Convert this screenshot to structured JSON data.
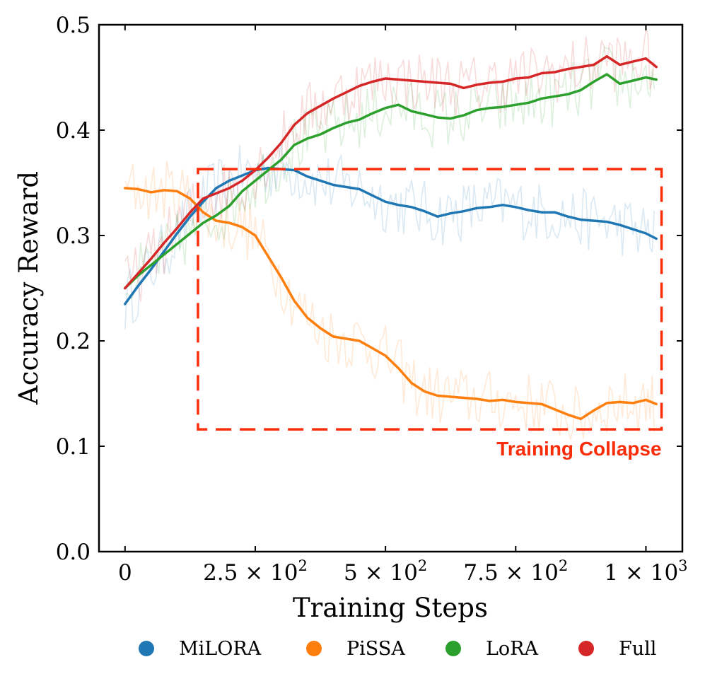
{
  "chart_data": {
    "type": "line",
    "title": "",
    "xlabel": "Training Steps",
    "ylabel": "Accuracy Reward",
    "xlim": [
      -50,
      1070
    ],
    "ylim": [
      0.0,
      0.5
    ],
    "y_ticks": [
      0.0,
      0.1,
      0.2,
      0.3,
      0.4,
      0.5
    ],
    "y_tick_labels": [
      "0.0",
      "0.1",
      "0.2",
      "0.3",
      "0.4",
      "0.5"
    ],
    "x_ticks": [
      {
        "value": 0,
        "label": "0",
        "exp": ""
      },
      {
        "value": 250,
        "label": "2.5 × 10",
        "exp": "2"
      },
      {
        "value": 500,
        "label": "5 × 10",
        "exp": "2"
      },
      {
        "value": 750,
        "label": "7.5 × 10",
        "exp": "2"
      },
      {
        "value": 1000,
        "label": "1 × 10",
        "exp": "3"
      }
    ],
    "x": [
      0,
      25,
      50,
      75,
      100,
      125,
      150,
      175,
      200,
      225,
      250,
      275,
      300,
      325,
      350,
      375,
      400,
      425,
      450,
      475,
      500,
      525,
      550,
      575,
      600,
      625,
      650,
      675,
      700,
      725,
      750,
      775,
      800,
      825,
      850,
      875,
      900,
      925,
      950,
      975,
      1000,
      1020
    ],
    "series": [
      {
        "name": "MiLORA",
        "color": "#1f77b4",
        "values": [
          0.235,
          0.252,
          0.268,
          0.285,
          0.302,
          0.318,
          0.332,
          0.345,
          0.352,
          0.357,
          0.362,
          0.364,
          0.363,
          0.362,
          0.356,
          0.352,
          0.348,
          0.346,
          0.344,
          0.338,
          0.332,
          0.329,
          0.327,
          0.323,
          0.318,
          0.321,
          0.323,
          0.326,
          0.327,
          0.329,
          0.327,
          0.324,
          0.322,
          0.322,
          0.318,
          0.315,
          0.314,
          0.313,
          0.31,
          0.306,
          0.302,
          0.297
        ]
      },
      {
        "name": "PiSSA",
        "color": "#ff7f0e",
        "values": [
          0.345,
          0.344,
          0.341,
          0.343,
          0.342,
          0.335,
          0.322,
          0.314,
          0.312,
          0.308,
          0.3,
          0.28,
          0.26,
          0.238,
          0.222,
          0.212,
          0.204,
          0.202,
          0.2,
          0.193,
          0.186,
          0.174,
          0.16,
          0.152,
          0.148,
          0.147,
          0.146,
          0.145,
          0.143,
          0.144,
          0.142,
          0.141,
          0.14,
          0.135,
          0.13,
          0.126,
          0.134,
          0.141,
          0.142,
          0.141,
          0.144,
          0.14
        ]
      },
      {
        "name": "LoRA",
        "color": "#2ca02c",
        "values": [
          0.25,
          0.262,
          0.272,
          0.282,
          0.292,
          0.302,
          0.312,
          0.319,
          0.328,
          0.342,
          0.352,
          0.362,
          0.372,
          0.386,
          0.392,
          0.396,
          0.402,
          0.407,
          0.41,
          0.416,
          0.421,
          0.424,
          0.418,
          0.415,
          0.412,
          0.411,
          0.414,
          0.419,
          0.421,
          0.422,
          0.424,
          0.426,
          0.43,
          0.432,
          0.434,
          0.438,
          0.446,
          0.453,
          0.444,
          0.447,
          0.45,
          0.448
        ]
      },
      {
        "name": "Full",
        "color": "#d62728",
        "values": [
          0.25,
          0.264,
          0.278,
          0.293,
          0.307,
          0.322,
          0.335,
          0.34,
          0.345,
          0.352,
          0.362,
          0.374,
          0.388,
          0.405,
          0.416,
          0.423,
          0.43,
          0.436,
          0.442,
          0.446,
          0.449,
          0.448,
          0.447,
          0.446,
          0.445,
          0.444,
          0.44,
          0.443,
          0.445,
          0.446,
          0.449,
          0.45,
          0.454,
          0.455,
          0.458,
          0.46,
          0.462,
          0.47,
          0.462,
          0.465,
          0.468,
          0.46
        ]
      }
    ],
    "annotation": {
      "label": "Training Collapse",
      "color": "#fa2d0a",
      "x_range": [
        140,
        1030
      ],
      "y_range": [
        0.116,
        0.363
      ]
    },
    "legend": {
      "placement": "bottom",
      "entries": [
        "MiLORA",
        "PiSSA",
        "LoRA",
        "Full"
      ]
    },
    "grid": false
  }
}
